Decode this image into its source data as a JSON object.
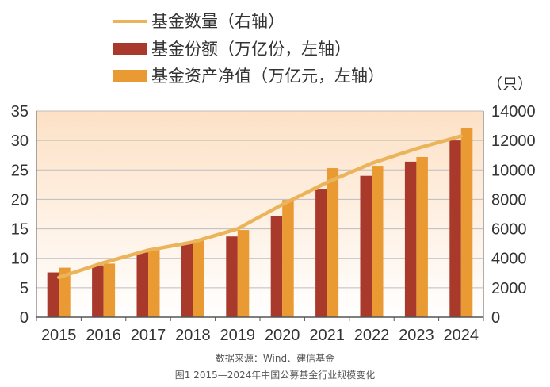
{
  "chart_data": {
    "type": "bar",
    "categories": [
      "2015",
      "2016",
      "2017",
      "2018",
      "2019",
      "2020",
      "2021",
      "2022",
      "2023",
      "2024"
    ],
    "series": [
      {
        "name": "基金份额（万亿份，左轴）",
        "type": "bar",
        "axis": "left",
        "color": "#a8392b",
        "values": [
          7.6,
          8.8,
          11.0,
          12.5,
          13.7,
          17.2,
          21.8,
          24.0,
          26.4,
          30.0
        ]
      },
      {
        "name": "基金资产净值（万亿元，左轴）",
        "type": "bar",
        "axis": "left",
        "color": "#ea9a32",
        "values": [
          8.4,
          9.1,
          11.6,
          13.0,
          14.8,
          19.9,
          25.3,
          25.7,
          27.2,
          32.1
        ]
      },
      {
        "name": "基金数量（右轴）",
        "type": "line",
        "axis": "right",
        "color": "#ecb45a",
        "values": [
          2700,
          3700,
          4550,
          5100,
          6000,
          7650,
          9150,
          10450,
          11450,
          12300
        ]
      }
    ],
    "ylim": [
      0,
      35
    ],
    "y_ticks": [
      0,
      5,
      10,
      15,
      20,
      25,
      30,
      35
    ],
    "y2lim": [
      0,
      14000
    ],
    "y2_ticks": [
      0,
      2000,
      4000,
      6000,
      8000,
      10000,
      12000,
      14000
    ],
    "y2_unit": "（只）",
    "grid": true,
    "legend_position": "top-left",
    "background_gradient": [
      "#fde1c6",
      "#ffffff"
    ]
  },
  "source_text": "数据来源：Wind、建信基金",
  "caption": "图1 2015—2024年中国公募基金行业规模变化"
}
